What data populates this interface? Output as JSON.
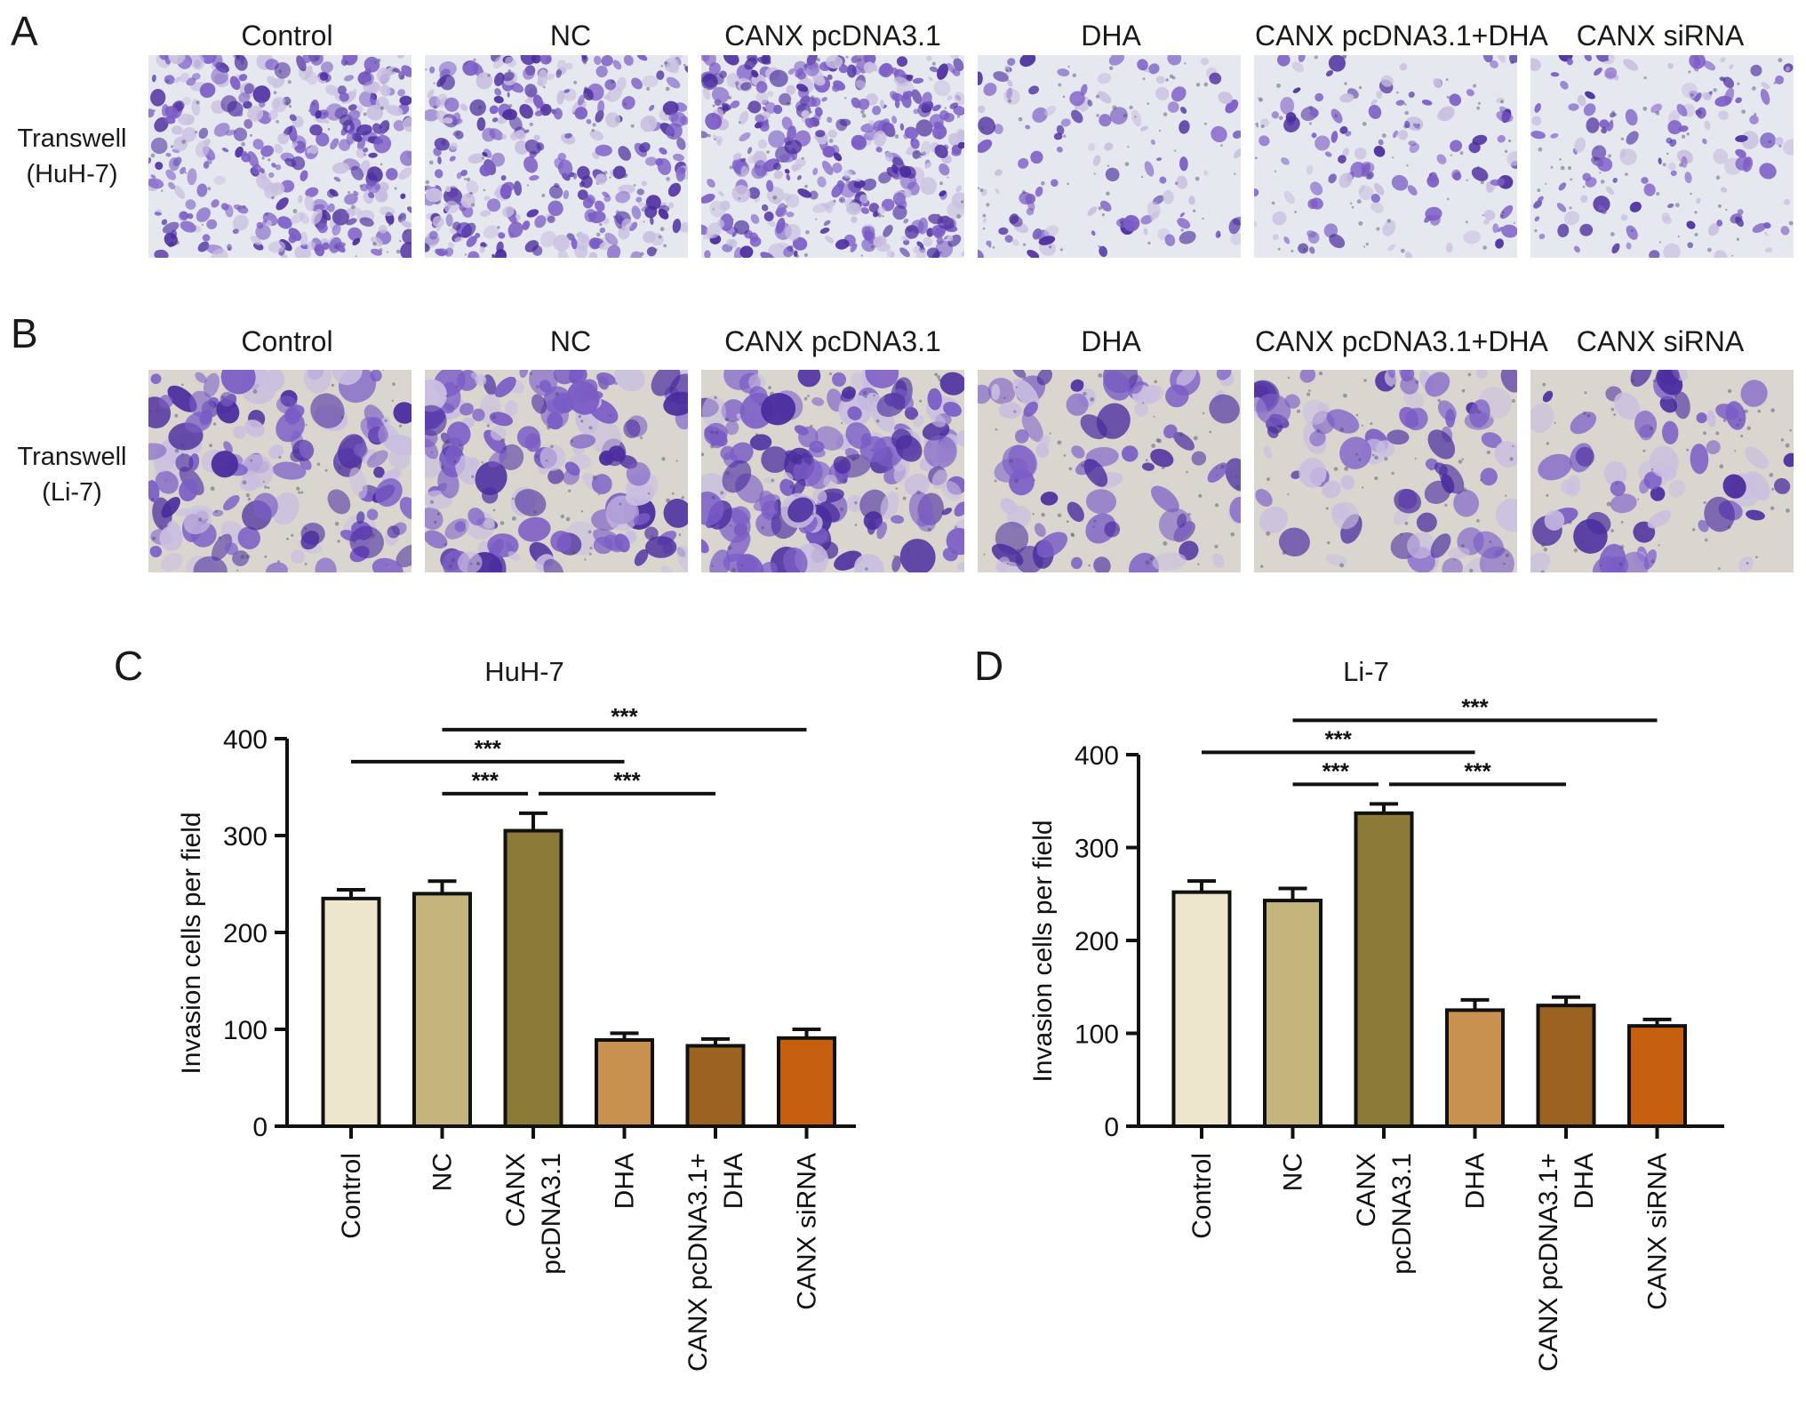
{
  "panel_letters": {
    "a": "A",
    "b": "B",
    "c": "C",
    "d": "D"
  },
  "micrographs": {
    "columns": [
      "Control",
      "NC",
      "CANX pcDNA3.1",
      "DHA",
      "CANX pcDNA3.1+DHA",
      "CANX siRNA"
    ],
    "row_a": {
      "label_line1": "Transwell",
      "label_line2": "(HuH-7)"
    },
    "row_b": {
      "label_line1": "Transwell",
      "label_line2": "(Li-7)"
    },
    "stain_colors": {
      "dense": "#4b2c9e",
      "cell": "#7b5cc6",
      "light": "#c9bfe0",
      "background_huh7": "#e6e8ef",
      "background_li7": "#d8d6cf"
    }
  },
  "chart_data": [
    {
      "type": "bar",
      "title": "HuH-7",
      "ylabel": "Invasion cells per field",
      "xlabel": "",
      "ylim": [
        0,
        400
      ],
      "yticks": [
        0,
        100,
        200,
        300,
        400
      ],
      "categories": [
        "Control",
        "NC",
        "CANX pcDNA3.1",
        "DHA",
        "CANX pcDNA3.1+ DHA",
        "CANX siRNA"
      ],
      "category_lines": [
        [
          "Control"
        ],
        [
          "NC"
        ],
        [
          "CANX",
          "pcDNA3.1"
        ],
        [
          "DHA"
        ],
        [
          "CANX pcDNA3.1+",
          "DHA"
        ],
        [
          "CANX siRNA"
        ]
      ],
      "values": [
        235,
        240,
        305,
        89,
        83,
        91
      ],
      "errors": [
        9,
        13,
        18,
        7,
        7,
        9
      ],
      "colors": [
        "#ede6cd",
        "#c4b57c",
        "#8c7a38",
        "#c8914f",
        "#9c6320",
        "#c6600e"
      ],
      "significance": [
        {
          "from": 0,
          "to": 3,
          "label": "***"
        },
        {
          "from": 1,
          "to": 5,
          "label": "***"
        },
        {
          "from": 1,
          "to": 2,
          "label": "***"
        },
        {
          "from": 2,
          "to": 4,
          "label": "***"
        }
      ]
    },
    {
      "type": "bar",
      "title": "Li-7",
      "ylabel": "Invasion cells per field",
      "xlabel": "",
      "ylim": [
        0,
        400
      ],
      "yticks": [
        0,
        100,
        200,
        300,
        400
      ],
      "categories": [
        "Control",
        "NC",
        "CANX pcDNA3.1",
        "DHA",
        "CANX pcDNA3.1+ DHA",
        "CANX siRNA"
      ],
      "category_lines": [
        [
          "Control"
        ],
        [
          "NC"
        ],
        [
          "CANX",
          "pcDNA3.1"
        ],
        [
          "DHA"
        ],
        [
          "CANX pcDNA3.1+",
          "DHA"
        ],
        [
          "CANX siRNA"
        ]
      ],
      "values": [
        252,
        243,
        337,
        125,
        130,
        108
      ],
      "errors": [
        12,
        13,
        10,
        11,
        9,
        7
      ],
      "colors": [
        "#ede6cd",
        "#c4b57c",
        "#8c7a38",
        "#c8914f",
        "#9c6320",
        "#c6600e"
      ],
      "significance": [
        {
          "from": 0,
          "to": 3,
          "label": "***"
        },
        {
          "from": 1,
          "to": 5,
          "label": "***"
        },
        {
          "from": 1,
          "to": 2,
          "label": "***"
        },
        {
          "from": 2,
          "to": 4,
          "label": "***"
        }
      ]
    }
  ]
}
